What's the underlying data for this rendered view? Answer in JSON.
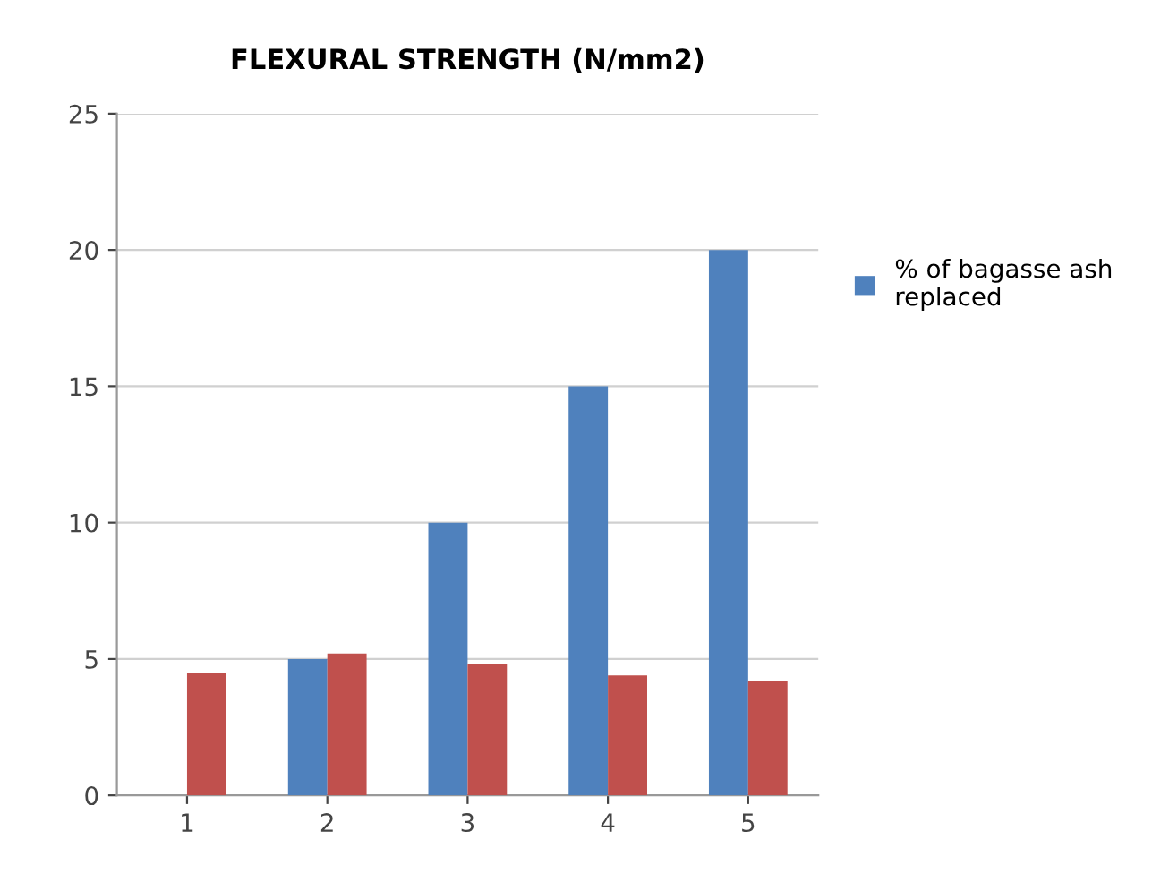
{
  "chart_data": {
    "type": "bar",
    "title": "FLEXURAL STRENGTH (N/mm2)",
    "categories": [
      "1",
      "2",
      "3",
      "4",
      "5"
    ],
    "series": [
      {
        "name": "% of bagasse ash replaced",
        "color": "#4f81bd",
        "values": [
          0,
          5,
          10,
          15,
          20
        ]
      },
      {
        "color": "#c0504d",
        "values": [
          4.5,
          5.2,
          4.8,
          4.4,
          4.2
        ]
      }
    ],
    "ylim": [
      0,
      25
    ],
    "yticks": [
      0,
      5,
      10,
      15,
      20,
      25
    ],
    "grid": "y",
    "legend": "right"
  }
}
